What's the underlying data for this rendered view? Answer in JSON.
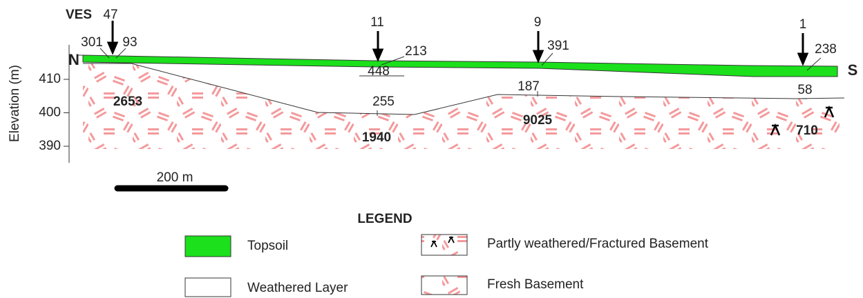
{
  "section": {
    "ves_label": "VES",
    "north": "N",
    "south": "S",
    "axis": {
      "label": "Elevation (m)",
      "ticks": [
        410,
        400,
        390
      ]
    },
    "stations": [
      {
        "ves": 47,
        "topsoil_left": 301,
        "topsoil_right": 93
      },
      {
        "ves": 11,
        "topsoil": 213,
        "weathered": 448,
        "basement_top": 255
      },
      {
        "ves": 9,
        "topsoil": 391,
        "weathered": 187
      },
      {
        "ves": 1,
        "topsoil": 238,
        "weathered": 58
      }
    ],
    "basement": [
      2653,
      1940,
      9025,
      710
    ],
    "scale": "200 m"
  },
  "legend": {
    "title": "LEGEND",
    "items": [
      "Topsoil",
      "Weathered Layer",
      "Partly weathered/Fractured Basement",
      "Fresh Basement"
    ]
  }
}
